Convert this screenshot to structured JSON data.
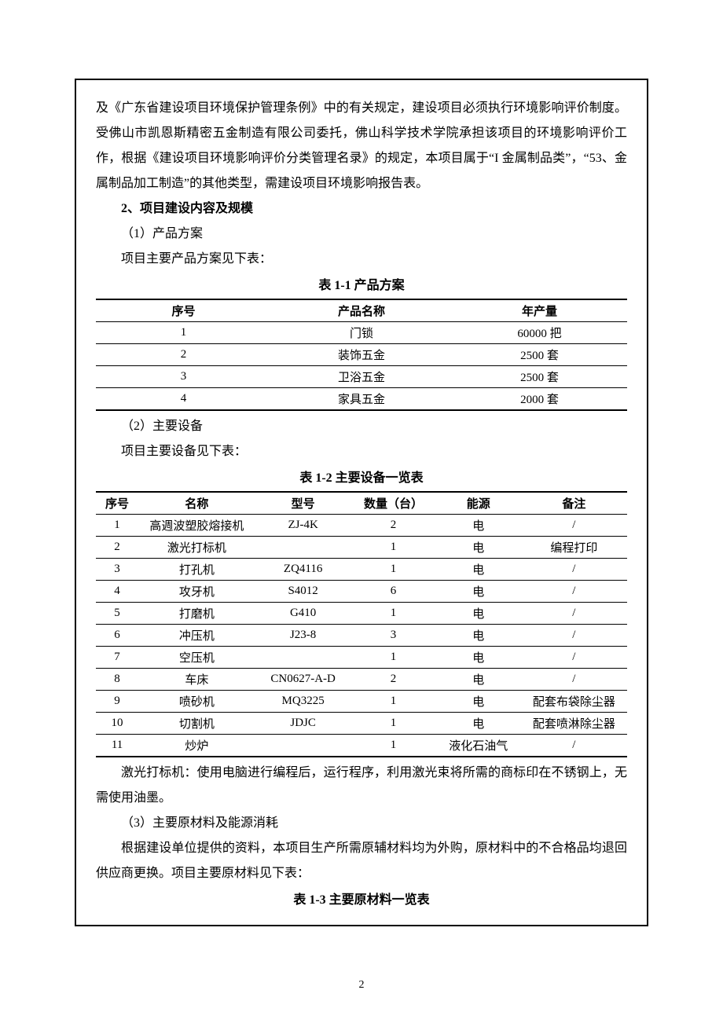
{
  "body": {
    "para1": "及《广东省建设项目环境保护管理条例》中的有关规定，建设项目必须执行环境影响评价制度。受佛山市凯恩斯精密五金制造有限公司委托，佛山科学技术学院承担该项目的环境影响评价工作，根据《建设项目环境影响评价分类管理名录》的规定，本项目属于“I 金属制品类”，“53、金属制品加工制造”的其他类型，需建设项目环境影响报告表。",
    "heading2": "2、项目建设内容及规模",
    "sub1": "（1）产品方案",
    "para2": "项目主要产品方案见下表：",
    "sub2": "（2）主要设备",
    "para3": "项目主要设备见下表：",
    "para4": "激光打标机：使用电脑进行编程后，运行程序，利用激光束将所需的商标印在不锈钢上，无需使用油墨。",
    "sub3": "（3）主要原材料及能源消耗",
    "para5": "根据建设单位提供的资料，本项目生产所需原辅材料均为外购，原材料中的不合格品均退回供应商更换。项目主要原材料见下表："
  },
  "tables": {
    "t1": {
      "caption_prefix": "表 ",
      "caption_num": "1-1",
      "caption_suffix": "   产品方案",
      "columns": [
        "序号",
        "产品名称",
        "年产量"
      ],
      "col_widths": [
        "33%",
        "34%",
        "33%"
      ],
      "rows": [
        [
          "1",
          "门锁",
          "60000 把"
        ],
        [
          "2",
          "装饰五金",
          "2500 套"
        ],
        [
          "3",
          "卫浴五金",
          "2500 套"
        ],
        [
          "4",
          "家具五金",
          "2000 套"
        ]
      ]
    },
    "t2": {
      "caption_prefix": "表 ",
      "caption_num": "1-2",
      "caption_suffix": "   主要设备一览表",
      "columns": [
        "序号",
        "名称",
        "型号",
        "数量（台）",
        "能源",
        "备注"
      ],
      "col_widths": [
        "8%",
        "22%",
        "18%",
        "16%",
        "16%",
        "20%"
      ],
      "rows": [
        [
          "1",
          "高週波塑胶熔接机",
          "ZJ-4K",
          "2",
          "电",
          "/"
        ],
        [
          "2",
          "激光打标机",
          "",
          "1",
          "电",
          "编程打印"
        ],
        [
          "3",
          "打孔机",
          "ZQ4116",
          "1",
          "电",
          "/"
        ],
        [
          "4",
          "攻牙机",
          "S4012",
          "6",
          "电",
          "/"
        ],
        [
          "5",
          "打磨机",
          "G410",
          "1",
          "电",
          "/"
        ],
        [
          "6",
          "冲压机",
          "J23-8",
          "3",
          "电",
          "/"
        ],
        [
          "7",
          "空压机",
          "",
          "1",
          "电",
          "/"
        ],
        [
          "8",
          "车床",
          "CN0627-A-D",
          "2",
          "电",
          "/"
        ],
        [
          "9",
          "喷砂机",
          "MQ3225",
          "1",
          "电",
          "配套布袋除尘器"
        ],
        [
          "10",
          "切割机",
          "JDJC",
          "1",
          "电",
          "配套喷淋除尘器"
        ],
        [
          "11",
          "炒炉",
          "",
          "1",
          "液化石油气",
          "/"
        ]
      ]
    },
    "t3": {
      "caption_prefix": "表 ",
      "caption_num": "1-3",
      "caption_suffix": "   主要原材料一览表"
    }
  },
  "page_number": "2"
}
